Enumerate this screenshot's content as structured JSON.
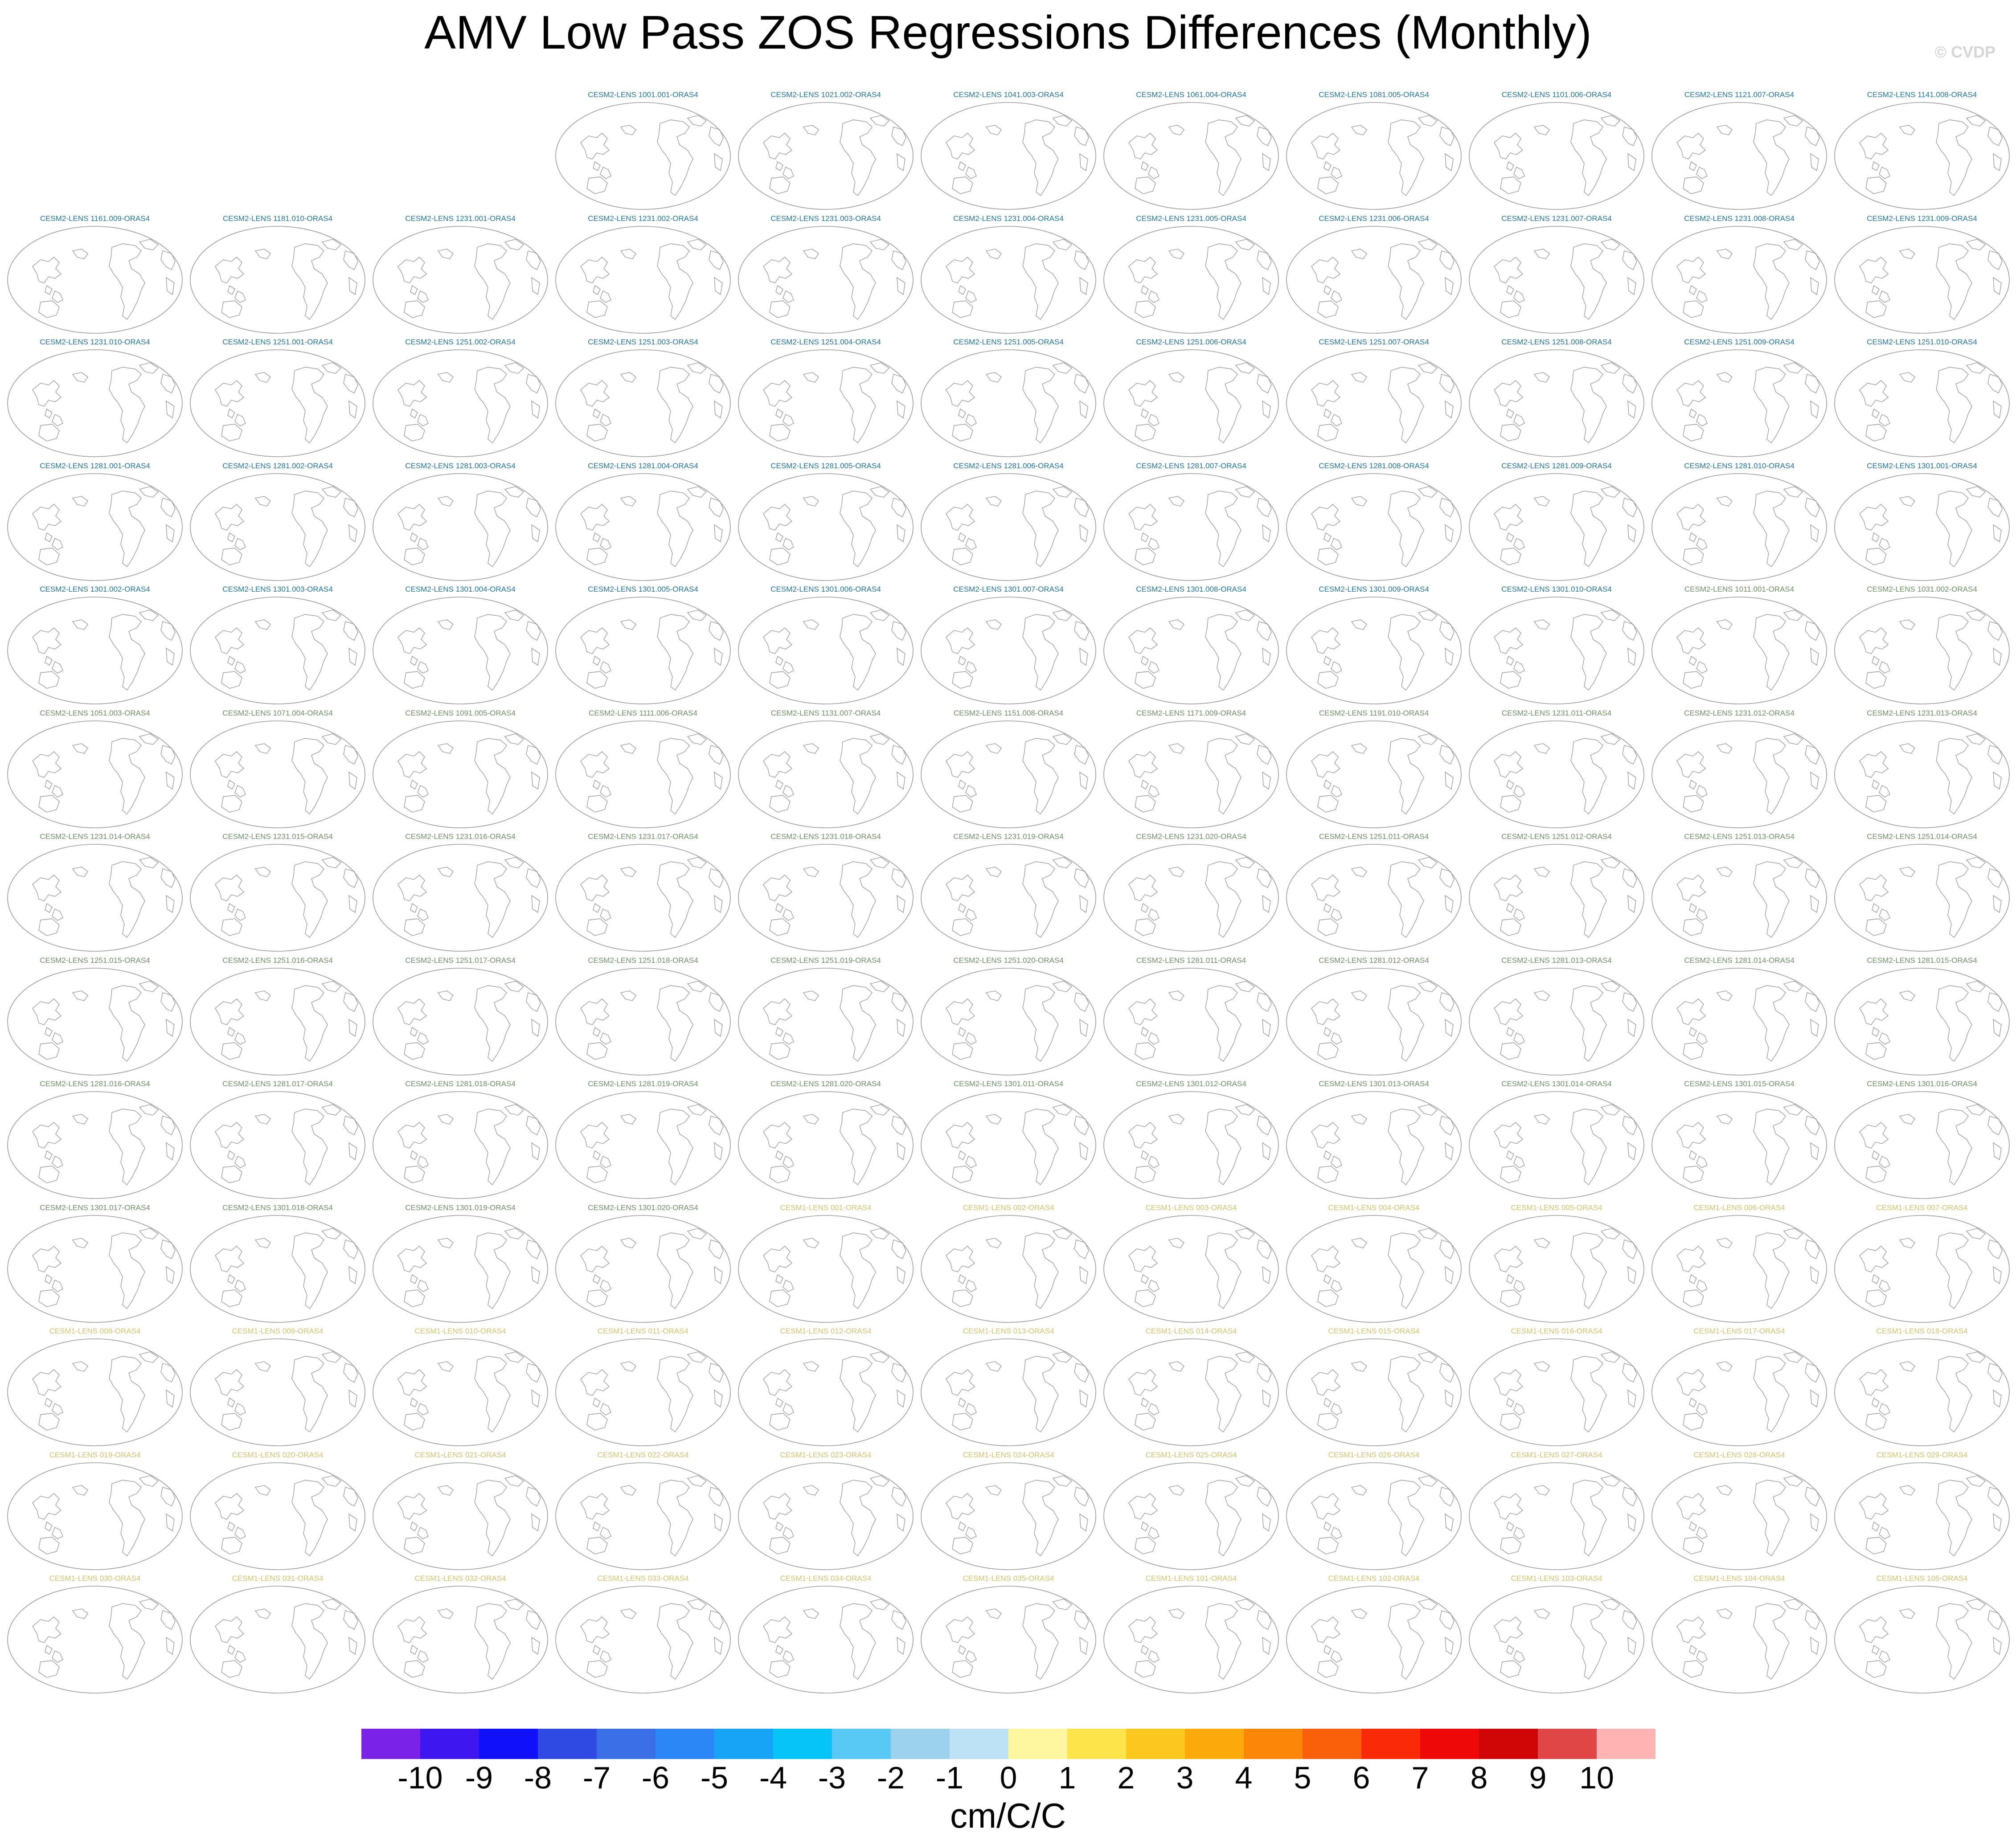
{
  "chart_data": {
    "type": "panel-map-grid",
    "title": "AMV Low Pass ZOS Regressions Differences (Monthly)",
    "copyright": "© CVDP",
    "colorbar": {
      "units": "cm/C/C",
      "tick_labels": [
        "-10",
        "-9",
        "-8",
        "-7",
        "-6",
        "-5",
        "-4",
        "-3",
        "-2",
        "-1",
        "0",
        "1",
        "2",
        "3",
        "4",
        "5",
        "6",
        "7",
        "8",
        "9",
        "10"
      ],
      "colors": [
        "#7b22e8",
        "#3d16f0",
        "#1010fb",
        "#2e4ae2",
        "#3b6fe8",
        "#2b87f5",
        "#17a4f7",
        "#06c4f8",
        "#58c8f4",
        "#9dd2ee",
        "#bde2f5",
        "#fff6a0",
        "#fde44a",
        "#fcc820",
        "#fba90b",
        "#fb8608",
        "#fa5f0a",
        "#fa2a08",
        "#ee0808",
        "#d00606",
        "#e04646",
        "#ffb3b3"
      ]
    },
    "panel_colors": {
      "group1": "#1f76a1",
      "group2": "#6f8f67",
      "group3": "#d4c36a",
      "coast": "#9c9c9c"
    },
    "panels": [
      {
        "label": "CESM2-LENS 1001.001-ORAS4",
        "g": 1
      },
      {
        "label": "CESM2-LENS 1021.002-ORAS4",
        "g": 1
      },
      {
        "label": "CESM2-LENS 1041.003-ORAS4",
        "g": 1
      },
      {
        "label": "CESM2-LENS 1061.004-ORAS4",
        "g": 1
      },
      {
        "label": "CESM2-LENS 1081.005-ORAS4",
        "g": 1
      },
      {
        "label": "CESM2-LENS 1101.006-ORAS4",
        "g": 1
      },
      {
        "label": "CESM2-LENS 1121.007-ORAS4",
        "g": 1
      },
      {
        "label": "CESM2-LENS 1141.008-ORAS4",
        "g": 1
      },
      {
        "label": "CESM2-LENS 1161.009-ORAS4",
        "g": 1
      },
      {
        "label": "CESM2-LENS 1181.010-ORAS4",
        "g": 1
      },
      {
        "label": "CESM2-LENS 1231.001-ORAS4",
        "g": 1
      },
      {
        "label": "CESM2-LENS 1231.002-ORAS4",
        "g": 1
      },
      {
        "label": "CESM2-LENS 1231.003-ORAS4",
        "g": 1
      },
      {
        "label": "CESM2-LENS 1231.004-ORAS4",
        "g": 1
      },
      {
        "label": "CESM2-LENS 1231.005-ORAS4",
        "g": 1
      },
      {
        "label": "CESM2-LENS 1231.006-ORAS4",
        "g": 1
      },
      {
        "label": "CESM2-LENS 1231.007-ORAS4",
        "g": 1
      },
      {
        "label": "CESM2-LENS 1231.008-ORAS4",
        "g": 1
      },
      {
        "label": "CESM2-LENS 1231.009-ORAS4",
        "g": 1
      },
      {
        "label": "CESM2-LENS 1231.010-ORAS4",
        "g": 1
      },
      {
        "label": "CESM2-LENS 1251.001-ORAS4",
        "g": 1
      },
      {
        "label": "CESM2-LENS 1251.002-ORAS4",
        "g": 1
      },
      {
        "label": "CESM2-LENS 1251.003-ORAS4",
        "g": 1
      },
      {
        "label": "CESM2-LENS 1251.004-ORAS4",
        "g": 1
      },
      {
        "label": "CESM2-LENS 1251.005-ORAS4",
        "g": 1
      },
      {
        "label": "CESM2-LENS 1251.006-ORAS4",
        "g": 1
      },
      {
        "label": "CESM2-LENS 1251.007-ORAS4",
        "g": 1
      },
      {
        "label": "CESM2-LENS 1251.008-ORAS4",
        "g": 1
      },
      {
        "label": "CESM2-LENS 1251.009-ORAS4",
        "g": 1
      },
      {
        "label": "CESM2-LENS 1251.010-ORAS4",
        "g": 1
      },
      {
        "label": "CESM2-LENS 1281.001-ORAS4",
        "g": 1
      },
      {
        "label": "CESM2-LENS 1281.002-ORAS4",
        "g": 1
      },
      {
        "label": "CESM2-LENS 1281.003-ORAS4",
        "g": 1
      },
      {
        "label": "CESM2-LENS 1281.004-ORAS4",
        "g": 1
      },
      {
        "label": "CESM2-LENS 1281.005-ORAS4",
        "g": 1
      },
      {
        "label": "CESM2-LENS 1281.006-ORAS4",
        "g": 1
      },
      {
        "label": "CESM2-LENS 1281.007-ORAS4",
        "g": 1
      },
      {
        "label": "CESM2-LENS 1281.008-ORAS4",
        "g": 1
      },
      {
        "label": "CESM2-LENS 1281.009-ORAS4",
        "g": 1
      },
      {
        "label": "CESM2-LENS 1281.010-ORAS4",
        "g": 1
      },
      {
        "label": "CESM2-LENS 1301.001-ORAS4",
        "g": 1
      },
      {
        "label": "CESM2-LENS 1301.002-ORAS4",
        "g": 1
      },
      {
        "label": "CESM2-LENS 1301.003-ORAS4",
        "g": 1
      },
      {
        "label": "CESM2-LENS 1301.004-ORAS4",
        "g": 1
      },
      {
        "label": "CESM2-LENS 1301.005-ORAS4",
        "g": 1
      },
      {
        "label": "CESM2-LENS 1301.006-ORAS4",
        "g": 1
      },
      {
        "label": "CESM2-LENS 1301.007-ORAS4",
        "g": 1
      },
      {
        "label": "CESM2-LENS 1301.008-ORAS4",
        "g": 1
      },
      {
        "label": "CESM2-LENS 1301.009-ORAS4",
        "g": 1
      },
      {
        "label": "CESM2-LENS 1301.010-ORAS4",
        "g": 1
      },
      {
        "label": "CESM2-LENS 1011.001-ORAS4",
        "g": 2
      },
      {
        "label": "CESM2-LENS 1031.002-ORAS4",
        "g": 2
      },
      {
        "label": "CESM2-LENS 1051.003-ORAS4",
        "g": 2
      },
      {
        "label": "CESM2-LENS 1071.004-ORAS4",
        "g": 2
      },
      {
        "label": "CESM2-LENS 1091.005-ORAS4",
        "g": 2
      },
      {
        "label": "CESM2-LENS 1111.006-ORAS4",
        "g": 2
      },
      {
        "label": "CESM2-LENS 1131.007-ORAS4",
        "g": 2
      },
      {
        "label": "CESM2-LENS 1151.008-ORAS4",
        "g": 2
      },
      {
        "label": "CESM2-LENS 1171.009-ORAS4",
        "g": 2
      },
      {
        "label": "CESM2-LENS 1191.010-ORAS4",
        "g": 2
      },
      {
        "label": "CESM2-LENS 1231.011-ORAS4",
        "g": 2
      },
      {
        "label": "CESM2-LENS 1231.012-ORAS4",
        "g": 2
      },
      {
        "label": "CESM2-LENS 1231.013-ORAS4",
        "g": 2
      },
      {
        "label": "CESM2-LENS 1231.014-ORAS4",
        "g": 2
      },
      {
        "label": "CESM2-LENS 1231.015-ORAS4",
        "g": 2
      },
      {
        "label": "CESM2-LENS 1231.016-ORAS4",
        "g": 2
      },
      {
        "label": "CESM2-LENS 1231.017-ORAS4",
        "g": 2
      },
      {
        "label": "CESM2-LENS 1231.018-ORAS4",
        "g": 2
      },
      {
        "label": "CESM2-LENS 1231.019-ORAS4",
        "g": 2
      },
      {
        "label": "CESM2-LENS 1231.020-ORAS4",
        "g": 2
      },
      {
        "label": "CESM2-LENS 1251.011-ORAS4",
        "g": 2
      },
      {
        "label": "CESM2-LENS 1251.012-ORAS4",
        "g": 2
      },
      {
        "label": "CESM2-LENS 1251.013-ORAS4",
        "g": 2
      },
      {
        "label": "CESM2-LENS 1251.014-ORAS4",
        "g": 2
      },
      {
        "label": "CESM2-LENS 1251.015-ORAS4",
        "g": 2
      },
      {
        "label": "CESM2-LENS 1251.016-ORAS4",
        "g": 2
      },
      {
        "label": "CESM2-LENS 1251.017-ORAS4",
        "g": 2
      },
      {
        "label": "CESM2-LENS 1251.018-ORAS4",
        "g": 2
      },
      {
        "label": "CESM2-LENS 1251.019-ORAS4",
        "g": 2
      },
      {
        "label": "CESM2-LENS 1251.020-ORAS4",
        "g": 2
      },
      {
        "label": "CESM2-LENS 1281.011-ORAS4",
        "g": 2
      },
      {
        "label": "CESM2-LENS 1281.012-ORAS4",
        "g": 2
      },
      {
        "label": "CESM2-LENS 1281.013-ORAS4",
        "g": 2
      },
      {
        "label": "CESM2-LENS 1281.014-ORAS4",
        "g": 2
      },
      {
        "label": "CESM2-LENS 1281.015-ORAS4",
        "g": 2
      },
      {
        "label": "CESM2-LENS 1281.016-ORAS4",
        "g": 2
      },
      {
        "label": "CESM2-LENS 1281.017-ORAS4",
        "g": 2
      },
      {
        "label": "CESM2-LENS 1281.018-ORAS4",
        "g": 2
      },
      {
        "label": "CESM2-LENS 1281.019-ORAS4",
        "g": 2
      },
      {
        "label": "CESM2-LENS 1281.020-ORAS4",
        "g": 2
      },
      {
        "label": "CESM2-LENS 1301.011-ORAS4",
        "g": 2
      },
      {
        "label": "CESM2-LENS 1301.012-ORAS4",
        "g": 2
      },
      {
        "label": "CESM2-LENS 1301.013-ORAS4",
        "g": 2
      },
      {
        "label": "CESM2-LENS 1301.014-ORAS4",
        "g": 2
      },
      {
        "label": "CESM2-LENS 1301.015-ORAS4",
        "g": 2
      },
      {
        "label": "CESM2-LENS 1301.016-ORAS4",
        "g": 2
      },
      {
        "label": "CESM2-LENS 1301.017-ORAS4",
        "g": 2
      },
      {
        "label": "CESM2-LENS 1301.018-ORAS4",
        "g": 2
      },
      {
        "label": "CESM2-LENS 1301.019-ORAS4",
        "g": 2
      },
      {
        "label": "CESM2-LENS 1301.020-ORAS4",
        "g": 2
      },
      {
        "label": "CESM1-LENS 001-ORAS4",
        "g": 3
      },
      {
        "label": "CESM1-LENS 002-ORAS4",
        "g": 3
      },
      {
        "label": "CESM1-LENS 003-ORAS4",
        "g": 3
      },
      {
        "label": "CESM1-LENS 004-ORAS4",
        "g": 3
      },
      {
        "label": "CESM1-LENS 005-ORAS4",
        "g": 3
      },
      {
        "label": "CESM1-LENS 006-ORAS4",
        "g": 3
      },
      {
        "label": "CESM1-LENS 007-ORAS4",
        "g": 3
      },
      {
        "label": "CESM1-LENS 008-ORAS4",
        "g": 3
      },
      {
        "label": "CESM1-LENS 009-ORAS4",
        "g": 3
      },
      {
        "label": "CESM1-LENS 010-ORAS4",
        "g": 3
      },
      {
        "label": "CESM1-LENS 011-ORAS4",
        "g": 3
      },
      {
        "label": "CESM1-LENS 012-ORAS4",
        "g": 3
      },
      {
        "label": "CESM1-LENS 013-ORAS4",
        "g": 3
      },
      {
        "label": "CESM1-LENS 014-ORAS4",
        "g": 3
      },
      {
        "label": "CESM1-LENS 015-ORAS4",
        "g": 3
      },
      {
        "label": "CESM1-LENS 016-ORAS4",
        "g": 3
      },
      {
        "label": "CESM1-LENS 017-ORAS4",
        "g": 3
      },
      {
        "label": "CESM1-LENS 018-ORAS4",
        "g": 3
      },
      {
        "label": "CESM1-LENS 019-ORAS4",
        "g": 3
      },
      {
        "label": "CESM1-LENS 020-ORAS4",
        "g": 3
      },
      {
        "label": "CESM1-LENS 021-ORAS4",
        "g": 3
      },
      {
        "label": "CESM1-LENS 022-ORAS4",
        "g": 3
      },
      {
        "label": "CESM1-LENS 023-ORAS4",
        "g": 3
      },
      {
        "label": "CESM1-LENS 024-ORAS4",
        "g": 3
      },
      {
        "label": "CESM1-LENS 025-ORAS4",
        "g": 3
      },
      {
        "label": "CESM1-LENS 026-ORAS4",
        "g": 3
      },
      {
        "label": "CESM1-LENS 027-ORAS4",
        "g": 3
      },
      {
        "label": "CESM1-LENS 028-ORAS4",
        "g": 3
      },
      {
        "label": "CESM1-LENS 029-ORAS4",
        "g": 3
      },
      {
        "label": "CESM1-LENS 030-ORAS4",
        "g": 3
      },
      {
        "label": "CESM1-LENS 031-ORAS4",
        "g": 3
      },
      {
        "label": "CESM1-LENS 032-ORAS4",
        "g": 3
      },
      {
        "label": "CESM1-LENS 033-ORAS4",
        "g": 3
      },
      {
        "label": "CESM1-LENS 034-ORAS4",
        "g": 3
      },
      {
        "label": "CESM1-LENS 035-ORAS4",
        "g": 3
      },
      {
        "label": "CESM1-LENS 101-ORAS4",
        "g": 3
      },
      {
        "label": "CESM1-LENS 102-ORAS4",
        "g": 3
      },
      {
        "label": "CESM1-LENS 103-ORAS4",
        "g": 3
      },
      {
        "label": "CESM1-LENS 104-ORAS4",
        "g": 3
      },
      {
        "label": "CESM1-LENS 105-ORAS4",
        "g": 3
      }
    ]
  }
}
